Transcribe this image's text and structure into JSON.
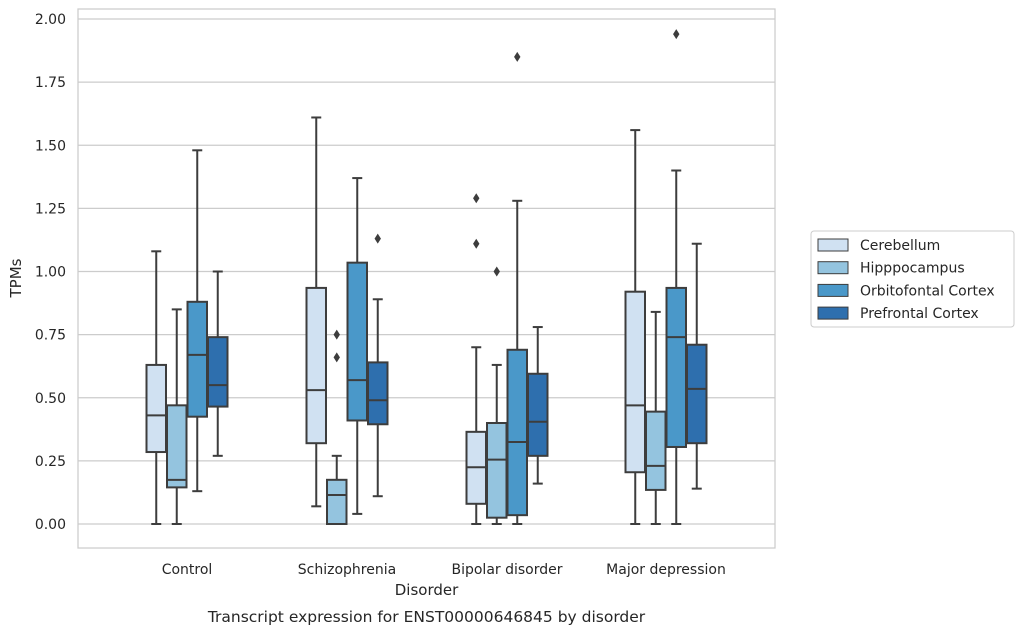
{
  "chart_data": {
    "type": "box",
    "xlabel": "Disorder",
    "ylabel": "TPMs",
    "caption": "Transcript expression for ENST00000646845 by disorder",
    "categories": [
      "Control",
      "Schizophrenia",
      "Bipolar disorder",
      "Major depression"
    ],
    "ylim": [
      -0.1,
      2.03
    ],
    "yticks": [
      0.0,
      0.25,
      0.5,
      0.75,
      1.0,
      1.25,
      1.5,
      1.75,
      2.0
    ],
    "ytick_labels": [
      "0.00",
      "0.25",
      "0.50",
      "0.75",
      "1.00",
      "1.25",
      "1.50",
      "1.75",
      "2.00"
    ],
    "grid": "horizontal",
    "legend_position": "right",
    "series": [
      {
        "name": "Cerebellum",
        "color": "#d0e1f2",
        "boxes": [
          {
            "min": 0.0,
            "q1": 0.285,
            "median": 0.43,
            "q3": 0.63,
            "max": 1.08,
            "outliers": []
          },
          {
            "min": 0.07,
            "q1": 0.32,
            "median": 0.53,
            "q3": 0.935,
            "max": 1.61,
            "outliers": []
          },
          {
            "min": 0.0,
            "q1": 0.08,
            "median": 0.225,
            "q3": 0.365,
            "max": 0.7,
            "outliers": [
              1.11,
              1.29
            ]
          },
          {
            "min": 0.0,
            "q1": 0.205,
            "median": 0.47,
            "q3": 0.92,
            "max": 1.56,
            "outliers": []
          }
        ]
      },
      {
        "name": "Hipppocampus",
        "color": "#94c4df",
        "boxes": [
          {
            "min": 0.0,
            "q1": 0.145,
            "median": 0.175,
            "q3": 0.47,
            "max": 0.85,
            "outliers": []
          },
          {
            "min": 0.0,
            "q1": 0.0,
            "median": 0.115,
            "q3": 0.175,
            "max": 0.27,
            "outliers": [
              0.66,
              0.75
            ]
          },
          {
            "min": 0.0,
            "q1": 0.025,
            "median": 0.255,
            "q3": 0.4,
            "max": 0.63,
            "outliers": [
              1.0
            ]
          },
          {
            "min": 0.0,
            "q1": 0.135,
            "median": 0.23,
            "q3": 0.445,
            "max": 0.84,
            "outliers": []
          }
        ]
      },
      {
        "name": "Orbitofontal Cortex",
        "color": "#4a98c9",
        "boxes": [
          {
            "min": 0.13,
            "q1": 0.425,
            "median": 0.67,
            "q3": 0.88,
            "max": 1.48,
            "outliers": []
          },
          {
            "min": 0.04,
            "q1": 0.41,
            "median": 0.57,
            "q3": 1.035,
            "max": 1.37,
            "outliers": []
          },
          {
            "min": 0.0,
            "q1": 0.035,
            "median": 0.325,
            "q3": 0.69,
            "max": 1.28,
            "outliers": [
              1.85
            ]
          },
          {
            "min": 0.0,
            "q1": 0.305,
            "median": 0.74,
            "q3": 0.935,
            "max": 1.4,
            "outliers": [
              1.94
            ]
          }
        ]
      },
      {
        "name": "Prefrontal Cortex",
        "color": "#2e6fae",
        "boxes": [
          {
            "min": 0.27,
            "q1": 0.465,
            "median": 0.55,
            "q3": 0.74,
            "max": 1.0,
            "outliers": []
          },
          {
            "min": 0.11,
            "q1": 0.395,
            "median": 0.49,
            "q3": 0.64,
            "max": 0.89,
            "outliers": [
              1.13
            ]
          },
          {
            "min": 0.16,
            "q1": 0.27,
            "median": 0.405,
            "q3": 0.595,
            "max": 0.78,
            "outliers": []
          },
          {
            "min": 0.14,
            "q1": 0.32,
            "median": 0.535,
            "q3": 0.71,
            "max": 1.11,
            "outliers": []
          }
        ]
      }
    ]
  }
}
